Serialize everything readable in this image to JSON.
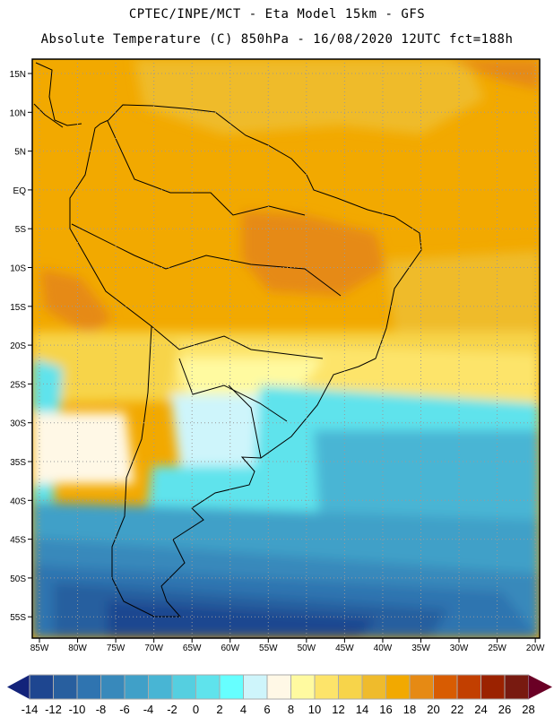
{
  "header": {
    "title": "CPTEC/INPE/MCT -  Eta Model 15km - GFS",
    "subtitle": "Absolute Temperature (C) 850hPa - 16/08/2020 12UTC fct=188h"
  },
  "map": {
    "lat_labels": [
      "15N",
      "10N",
      "5N",
      "EQ",
      "5S",
      "10S",
      "15S",
      "20S",
      "25S",
      "30S",
      "35S",
      "40S",
      "45S",
      "50S",
      "55S"
    ],
    "lon_labels": [
      "85W",
      "80W",
      "75W",
      "70W",
      "65W",
      "60W",
      "55W",
      "50W",
      "45W",
      "40W",
      "35W",
      "30W",
      "25W",
      "20W"
    ]
  },
  "colorbar": {
    "labels": [
      "-14",
      "-12",
      "-10",
      "-8",
      "-6",
      "-4",
      "-2",
      "0",
      "2",
      "4",
      "6",
      "8",
      "10",
      "12",
      "14",
      "16",
      "18",
      "20",
      "22",
      "24",
      "26",
      "28"
    ],
    "colors": [
      "#1e4690",
      "#285f9f",
      "#2f74b0",
      "#3889bb",
      "#40a0c8",
      "#48b5d4",
      "#55cfe0",
      "#5fe3ec",
      "#66ffff",
      "#cef5fb",
      "#fff8e6",
      "#fffaa0",
      "#fde46a",
      "#f7d44a",
      "#efbb2c",
      "#f2a900",
      "#e68a14",
      "#d85c02",
      "#c23f00",
      "#9b2200",
      "#781a10"
    ],
    "under_color": "#13237a",
    "over_color": "#6a0025"
  }
}
